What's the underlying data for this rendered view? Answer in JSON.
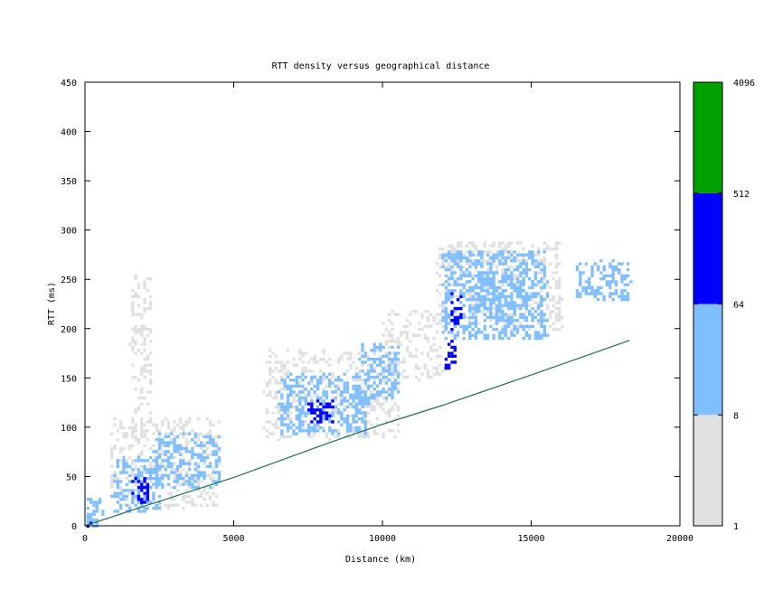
{
  "chart_data": {
    "type": "heatmap",
    "title": "RTT density versus geographical distance",
    "xlabel": "Distance (km)",
    "ylabel": "RTT (ms)",
    "xlim": [
      0,
      20000
    ],
    "ylim": [
      0,
      450
    ],
    "x_ticks": [
      "0",
      "5000",
      "10000",
      "15000",
      "20000"
    ],
    "x_tick_values": [
      0,
      5000,
      10000,
      15000,
      20000
    ],
    "y_ticks": [
      "0",
      "50",
      "100",
      "150",
      "200",
      "250",
      "300",
      "350",
      "400",
      "450"
    ],
    "y_tick_values": [
      0,
      50,
      100,
      150,
      200,
      250,
      300,
      350,
      400,
      450
    ],
    "colorbar": {
      "scale": "log2",
      "range": [
        1,
        4096
      ],
      "tick_labels": [
        "1",
        "8",
        "64",
        "512",
        "4096"
      ],
      "tick_values": [
        1,
        8,
        64,
        512,
        4096
      ],
      "bands": [
        {
          "from": 1,
          "to": 8,
          "color": "#e0e0e0"
        },
        {
          "from": 8,
          "to": 64,
          "color": "#80bfff"
        },
        {
          "from": 64,
          "to": 512,
          "color": "#0000ff"
        },
        {
          "from": 512,
          "to": 4096,
          "color": "#00a000"
        }
      ]
    },
    "reference_line": {
      "color": "#1f6f4f",
      "points": [
        [
          0,
          0
        ],
        [
          2000,
          20
        ],
        [
          5000,
          49
        ],
        [
          8000,
          82
        ],
        [
          10000,
          103
        ],
        [
          12000,
          122
        ],
        [
          15000,
          153
        ],
        [
          18300,
          188
        ]
      ]
    },
    "density_clusters": [
      {
        "x": [
          0,
          600
        ],
        "y": [
          0,
          30
        ],
        "level": 2
      },
      {
        "x": [
          0,
          300
        ],
        "y": [
          0,
          5
        ],
        "level": 3
      },
      {
        "x": [
          900,
          2500
        ],
        "y": [
          15,
          70
        ],
        "level": 2
      },
      {
        "x": [
          1500,
          2100
        ],
        "y": [
          25,
          50
        ],
        "level": 3
      },
      {
        "x": [
          2300,
          4500
        ],
        "y": [
          40,
          95
        ],
        "level": 2
      },
      {
        "x": [
          800,
          4500
        ],
        "y": [
          20,
          110
        ],
        "level": 1
      },
      {
        "x": [
          1500,
          2200
        ],
        "y": [
          90,
          260
        ],
        "level": 1
      },
      {
        "x": [
          6500,
          9500
        ],
        "y": [
          95,
          155
        ],
        "level": 2
      },
      {
        "x": [
          7500,
          8300
        ],
        "y": [
          105,
          130
        ],
        "level": 3
      },
      {
        "x": [
          6000,
          10500
        ],
        "y": [
          90,
          180
        ],
        "level": 1
      },
      {
        "x": [
          9200,
          10500
        ],
        "y": [
          130,
          185
        ],
        "level": 2
      },
      {
        "x": [
          10000,
          12000
        ],
        "y": [
          150,
          220
        ],
        "level": 1
      },
      {
        "x": [
          11800,
          16000
        ],
        "y": [
          200,
          290
        ],
        "level": 1
      },
      {
        "x": [
          12000,
          12400
        ],
        "y": [
          160,
          190
        ],
        "level": 3
      },
      {
        "x": [
          12300,
          12600
        ],
        "y": [
          200,
          240
        ],
        "level": 3
      },
      {
        "x": [
          12000,
          15500
        ],
        "y": [
          190,
          280
        ],
        "level": 2
      },
      {
        "x": [
          13000,
          15000
        ],
        "y": [
          220,
          260
        ],
        "level": 2
      },
      {
        "x": [
          16500,
          18300
        ],
        "y": [
          230,
          270
        ],
        "level": 2
      }
    ]
  }
}
